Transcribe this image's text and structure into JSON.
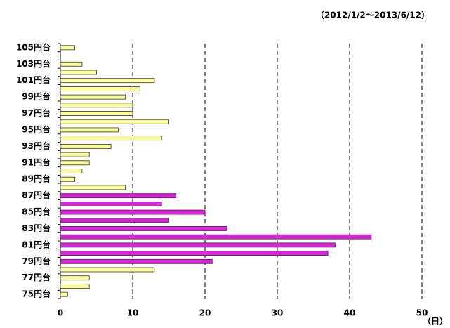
{
  "chart_data": {
    "type": "barh",
    "subtitle": "（2012/1/2～2013/6/12）",
    "xlabel": "（日）",
    "categories": [
      "75円台",
      null,
      "77円台",
      null,
      "79円台",
      null,
      "81円台",
      null,
      "83円台",
      null,
      "85円台",
      null,
      "87円台",
      null,
      "89円台",
      null,
      "91円台",
      null,
      "93円台",
      null,
      "95円台",
      null,
      "97円台",
      null,
      "99円台",
      null,
      "101円台",
      null,
      "103円台",
      null,
      "105円台"
    ],
    "values": [
      1,
      4,
      4,
      13,
      21,
      37,
      38,
      43,
      23,
      15,
      20,
      14,
      16,
      9,
      2,
      3,
      4,
      4,
      7,
      14,
      8,
      15,
      10,
      10,
      9,
      11,
      13,
      5,
      3,
      0,
      2
    ],
    "colors": [
      "#ffff99",
      "#ffff99",
      "#ffff99",
      "#ffff99",
      "#e020e0",
      "#e020e0",
      "#e020e0",
      "#e020e0",
      "#e020e0",
      "#e020e0",
      "#e020e0",
      "#e020e0",
      "#e020e0",
      "#ffff99",
      "#ffff99",
      "#ffff99",
      "#ffff99",
      "#ffff99",
      "#ffff99",
      "#ffff99",
      "#ffff99",
      "#ffff99",
      "#ffff99",
      "#ffff99",
      "#ffff99",
      "#ffff99",
      "#ffff99",
      "#ffff99",
      "#ffff99",
      "#ffff99",
      "#ffff99"
    ],
    "xlim": [
      0,
      50
    ],
    "xticks": [
      0,
      10,
      20,
      30,
      40,
      50
    ],
    "grid": true
  }
}
